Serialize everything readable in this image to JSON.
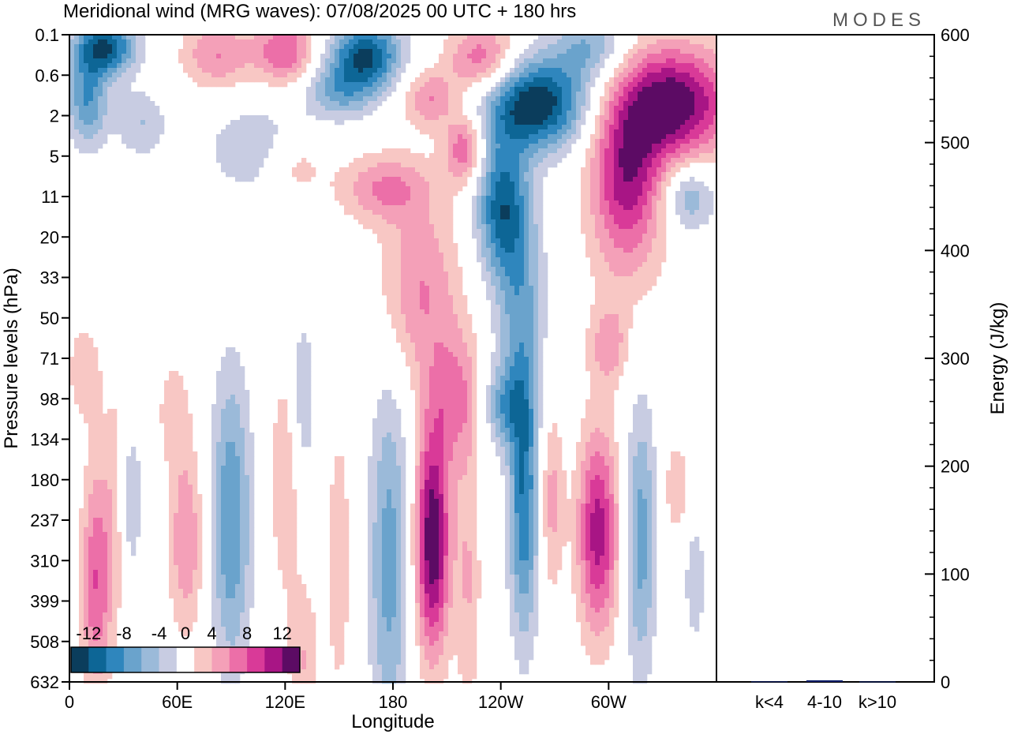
{
  "chart_data": {
    "type": "heatmap",
    "title": "Meridional wind (MRG waves):  07/08/2025  00 UTC  + 180 hrs",
    "logo": "MODES",
    "xlabel": "Longitude",
    "ylabel": "Pressure levels (hPa)",
    "x_tick_labels": [
      "0",
      "60E",
      "120E",
      "180",
      "120W",
      "60W"
    ],
    "x_tick_degrees": [
      0,
      60,
      120,
      180,
      240,
      300
    ],
    "x_range_degrees": [
      0,
      360
    ],
    "y_tick_labels": [
      "0.1",
      "0.6",
      "2",
      "5",
      "11",
      "20",
      "33",
      "50",
      "71",
      "98",
      "134",
      "180",
      "237",
      "310",
      "399",
      "508",
      "632"
    ],
    "colorbar": {
      "labels": [
        "-12",
        "-8",
        "-4",
        "0",
        "4",
        "8",
        "12"
      ],
      "levels": [
        -14,
        -12,
        -10,
        -8,
        -6,
        -4,
        -2,
        2,
        4,
        6,
        8,
        10,
        12,
        14
      ],
      "colors": [
        "#0b3d5c",
        "#0d6696",
        "#2f86bd",
        "#6aa3cc",
        "#9bbad9",
        "#c8cce2",
        "#ffffff",
        "#f8c7c4",
        "#f4a0b8",
        "#ec6fa8",
        "#d93a98",
        "#a81585",
        "#5c0b64"
      ]
    },
    "blobs": [
      {
        "lon": 20,
        "lev": 0.3,
        "dlon": 12,
        "dlev": 0.5,
        "v": -12
      },
      {
        "lon": 10,
        "lev": 1.6,
        "dlon": 8,
        "dlev": 0.8,
        "v": -8
      },
      {
        "lon": 40,
        "lev": 2.2,
        "dlon": 10,
        "dlev": 0.6,
        "v": -4
      },
      {
        "lon": 82,
        "lev": 0.5,
        "dlon": 14,
        "dlev": 0.6,
        "v": 6
      },
      {
        "lon": 120,
        "lev": 0.4,
        "dlon": 12,
        "dlev": 0.6,
        "v": 8
      },
      {
        "lon": 165,
        "lev": 0.5,
        "dlon": 14,
        "dlev": 0.6,
        "v": -12
      },
      {
        "lon": 150,
        "lev": 1.4,
        "dlon": 14,
        "dlev": 0.5,
        "v": -6
      },
      {
        "lon": 200,
        "lev": 1.6,
        "dlon": 10,
        "dlev": 0.5,
        "v": 6
      },
      {
        "lon": 220,
        "lev": 2.8,
        "dlon": 8,
        "dlev": 0.6,
        "v": 8
      },
      {
        "lon": 230,
        "lev": 0.6,
        "dlon": 14,
        "dlev": 0.6,
        "v": 8
      },
      {
        "lon": 260,
        "lev": 1.7,
        "dlon": 20,
        "dlev": 0.8,
        "v": -14
      },
      {
        "lon": 240,
        "lev": 4.2,
        "dlon": 10,
        "dlev": 1.2,
        "v": -10
      },
      {
        "lon": 250,
        "lev": 6.5,
        "dlon": 10,
        "dlev": 2.0,
        "v": -6
      },
      {
        "lon": 290,
        "lev": 0.3,
        "dlon": 14,
        "dlev": 0.6,
        "v": -6
      },
      {
        "lon": 335,
        "lev": 1.7,
        "dlon": 24,
        "dlev": 1.0,
        "v": 14
      },
      {
        "lon": 310,
        "lev": 3.5,
        "dlon": 14,
        "dlev": 1.2,
        "v": 10
      },
      {
        "lon": 175,
        "lev": 3.8,
        "dlon": 18,
        "dlev": 0.6,
        "v": 6
      },
      {
        "lon": 125,
        "lev": 3.2,
        "dlon": 12,
        "dlev": 0.6,
        "v": 4
      },
      {
        "lon": 105,
        "lev": 2.8,
        "dlon": 20,
        "dlev": 0.8,
        "v": -4
      },
      {
        "lon": 345,
        "lev": 4.0,
        "dlon": 10,
        "dlev": 0.6,
        "v": -6
      },
      {
        "lon": 195,
        "lev": 6.3,
        "dlon": 16,
        "dlev": 1.6,
        "v": 6
      },
      {
        "lon": 310,
        "lev": 5.5,
        "dlon": 16,
        "dlev": 1.2,
        "v": 3
      },
      {
        "lon": 15,
        "lev": 13.5,
        "dlon": 6,
        "dlev": 2.0,
        "v": 8
      },
      {
        "lon": 27,
        "lev": 11.5,
        "dlon": 5,
        "dlev": 2.0,
        "v": 4
      },
      {
        "lon": 33,
        "lev": 11.5,
        "dlon": 5,
        "dlev": 1.4,
        "v": -5
      },
      {
        "lon": 65,
        "lev": 12.5,
        "dlon": 7,
        "dlev": 1.6,
        "v": 6
      },
      {
        "lon": 58,
        "lev": 9.3,
        "dlon": 7,
        "dlev": 1.0,
        "v": 3
      },
      {
        "lon": 90,
        "lev": 12.0,
        "dlon": 8,
        "dlev": 2.6,
        "v": -8
      },
      {
        "lon": 120,
        "lev": 11.0,
        "dlon": 6,
        "dlev": 2.0,
        "v": 4
      },
      {
        "lon": 130,
        "lev": 9.0,
        "dlon": 5,
        "dlev": 1.5,
        "v": -4
      },
      {
        "lon": 150,
        "lev": 13.0,
        "dlon": 6,
        "dlev": 3.0,
        "v": 3
      },
      {
        "lon": 178,
        "lev": 13.0,
        "dlon": 8,
        "dlev": 3.2,
        "v": -7
      },
      {
        "lon": 202,
        "lev": 12.5,
        "dlon": 7,
        "dlev": 2.0,
        "v": 14
      },
      {
        "lon": 215,
        "lev": 9.0,
        "dlon": 10,
        "dlev": 1.2,
        "v": 6
      },
      {
        "lon": 222,
        "lev": 13.5,
        "dlon": 5,
        "dlev": 2.4,
        "v": 4
      },
      {
        "lon": 242,
        "lev": 9.2,
        "dlon": 8,
        "dlev": 0.7,
        "v": -6
      },
      {
        "lon": 253,
        "lev": 11.5,
        "dlon": 6,
        "dlev": 2.4,
        "v": -10
      },
      {
        "lon": 268,
        "lev": 11.5,
        "dlon": 5,
        "dlev": 1.6,
        "v": 5
      },
      {
        "lon": 294,
        "lev": 12.3,
        "dlon": 8,
        "dlev": 1.8,
        "v": 11
      },
      {
        "lon": 318,
        "lev": 12.5,
        "dlon": 6,
        "dlev": 2.4,
        "v": -7
      },
      {
        "lon": 338,
        "lev": 11.2,
        "dlon": 5,
        "dlev": 0.8,
        "v": 4
      },
      {
        "lon": 300,
        "lev": 7.7,
        "dlon": 8,
        "dlev": 0.7,
        "v": 5
      },
      {
        "lon": 348,
        "lev": 13.5,
        "dlon": 5,
        "dlev": 1.4,
        "v": -3
      },
      {
        "lon": 130,
        "lev": 15.5,
        "dlon": 6,
        "dlev": 1.4,
        "v": 4
      },
      {
        "lon": 8,
        "lev": 8.3,
        "dlon": 8,
        "dlev": 1.0,
        "v": 3
      }
    ],
    "energy_panel": {
      "ylabel": "Energy (J/kg)",
      "ylim": [
        0,
        600
      ],
      "y_tick_labels": [
        "0",
        "100",
        "200",
        "300",
        "400",
        "500",
        "600"
      ],
      "y_tick_values": [
        0,
        100,
        200,
        300,
        400,
        500,
        600
      ],
      "categories": [
        "k<4",
        "4-10",
        "k>10"
      ],
      "values": [
        0.5,
        1.5,
        0.4
      ],
      "bar_color": "#0b1f6b"
    }
  }
}
